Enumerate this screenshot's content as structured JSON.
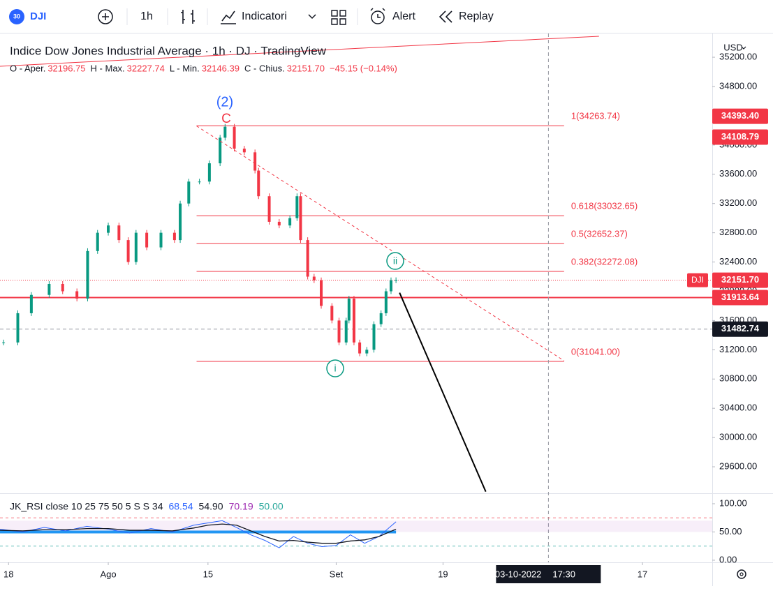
{
  "toolbar": {
    "symbol_badge": "30",
    "symbol": "DJI",
    "interval": "1h",
    "indicators": "Indicatori",
    "alert": "Alert",
    "replay": "Replay"
  },
  "chart_data": {
    "type": "candlestick",
    "title": "Indice Dow Jones Industrial Average · 1h · DJ · TradingView",
    "ohlc": [
      {
        "label": "O - Aper.",
        "value": "32196.75"
      },
      {
        "label": "H - Max.",
        "value": "32227.74"
      },
      {
        "label": "L - Min.",
        "value": "32146.39"
      },
      {
        "label": "C - Chius.",
        "value": "32151.70"
      }
    ],
    "change": "−45.15 (−0.14%)",
    "currency": "USD",
    "x": [
      -0.7,
      1.3,
      3.2,
      5.7,
      7.6,
      9.6,
      11.1,
      12.5,
      14.0,
      15.5,
      16.8,
      17.9,
      19.4,
      21.4,
      23.3,
      24.1,
      25.3,
      26.8,
      28.2,
      29.7,
      30.4,
      31.7,
      33.1,
      34.6,
      35.1,
      36.6,
      38.0,
      39.5,
      40.5,
      41.0,
      42.0,
      42.9,
      43.9,
      45.4,
      46.4,
      47.4,
      47.8,
      48.5,
      49.3,
      50.3,
      51.3,
      52.3,
      53.0,
      53.7,
      54.4
    ],
    "series": [
      {
        "name": "DJI",
        "values": [
          31300,
          31700,
          31950,
          32100,
          32000,
          31900,
          32550,
          32800,
          32900,
          32700,
          32400,
          32800,
          32600,
          32800,
          32700,
          33200,
          33500,
          33500,
          33750,
          34100,
          34250,
          33950,
          33900,
          33650,
          33300,
          32950,
          32900,
          33000,
          33300,
          32700,
          32200,
          32150,
          31800,
          31600,
          31300,
          31600,
          31900,
          31300,
          31150,
          31200,
          31550,
          31700,
          32000,
          32150,
          32151.7
        ]
      }
    ],
    "up_color": "#089981",
    "down_color": "#f23645",
    "xlim": [
      -1.2,
      98.8
    ],
    "xticks": [
      {
        "value": 0,
        "label": "18"
      },
      {
        "value": 14,
        "label": "Ago"
      },
      {
        "value": 28,
        "label": "15"
      },
      {
        "value": 46,
        "label": "Set"
      },
      {
        "value": 61,
        "label": "19"
      },
      {
        "value": 89,
        "label": "17"
      }
    ],
    "ylim": [
      29257,
      35525
    ],
    "yticks": [
      {
        "value": 29600,
        "label": "29600.00"
      },
      {
        "value": 30000,
        "label": "30000.00"
      },
      {
        "value": 30400,
        "label": "30400.00"
      },
      {
        "value": 30800,
        "label": "30800.00"
      },
      {
        "value": 31200,
        "label": "31200.00"
      },
      {
        "value": 31600,
        "label": "31600.00"
      },
      {
        "value": 32000,
        "label": "32000.00"
      },
      {
        "value": 32400,
        "label": "32400.00"
      },
      {
        "value": 32800,
        "label": "32800.00"
      },
      {
        "value": 33200,
        "label": "33200.00"
      },
      {
        "value": 33600,
        "label": "33600.00"
      },
      {
        "value": 34000,
        "label": "34000.00"
      },
      {
        "value": 34400,
        "label": "34400.00"
      },
      {
        "value": 34800,
        "label": "34800.00"
      },
      {
        "value": 35200,
        "label": "35200.00"
      }
    ],
    "fibonacci": [
      {
        "label": "1(34263.74)",
        "value": 34263.74
      },
      {
        "label": "0.618(33032.65)",
        "value": 33032.65
      },
      {
        "label": "0.5(32652.37)",
        "value": 32652.37
      },
      {
        "label": "0.382(32272.08)",
        "value": 32272.08
      },
      {
        "label": "0(31041.00)",
        "value": 31041.0
      }
    ],
    "fib_x": [
      26.4,
      78.0
    ],
    "price_labels": [
      {
        "value": 34393.4,
        "label": "34393.40"
      },
      {
        "value": 34108.79,
        "label": "34108.79"
      }
    ],
    "last_price": {
      "name": "DJI",
      "value": 32151.7,
      "label": "32151.70"
    },
    "resistance": {
      "value": 31913.64,
      "label": "31913.64"
    },
    "crosshair": {
      "x": 75.8,
      "x_label": "03-10-2022",
      "time_label": "17:30",
      "value": 31482.74,
      "label": "31482.74"
    },
    "trendlines": [
      {
        "x": [
          26.4,
          78.0
        ],
        "values": [
          34260,
          31050
        ],
        "color": "#f23645",
        "dashed": true
      },
      {
        "x": [
          54.9,
          67.0
        ],
        "values": [
          31980,
          29260
        ],
        "color": "#000000",
        "dashed": false
      },
      {
        "x": [
          -1.2,
          82.9
        ],
        "values": [
          35077,
          35487
        ],
        "color": "#f23645",
        "dashed": false
      }
    ],
    "annotations": [
      {
        "label": "(2)",
        "color": "#2962ff"
      },
      {
        "label": "C",
        "color": "#f23645"
      },
      {
        "label": "ii",
        "color": "#089981"
      },
      {
        "label": "i",
        "color": "#089981"
      }
    ],
    "rsi": {
      "title": "JK_RSI close 10 25 75 50 5 S S 34",
      "readouts": [
        {
          "label": "68.54",
          "color": "#2962ff"
        },
        {
          "label": "54.90",
          "color": "#131722"
        },
        {
          "label": "70.19",
          "color": "#9c27b0"
        },
        {
          "label": "50.00",
          "color": "#26a69a"
        }
      ],
      "ylim": [
        -2.5,
        117.3
      ],
      "yticks": [
        {
          "value": 0,
          "label": "0.00"
        },
        {
          "value": 50,
          "label": "50.00"
        },
        {
          "value": 100,
          "label": "100.00"
        }
      ],
      "levels": [
        75,
        25
      ],
      "band": [
        50,
        70
      ],
      "signal": 50,
      "x": [
        -1.2,
        2,
        5,
        8,
        11,
        14,
        17,
        20,
        23,
        26,
        28,
        30,
        32,
        34,
        36,
        38,
        40,
        42,
        44,
        46,
        48,
        50,
        52,
        54.4
      ],
      "series": [
        {
          "color": "#2962ff",
          "values": [
            55,
            50,
            58,
            52,
            60,
            55,
            48,
            56,
            50,
            62,
            66,
            70,
            58,
            45,
            35,
            22,
            42,
            30,
            24,
            26,
            45,
            30,
            42,
            68
          ]
        },
        {
          "color": "#131722",
          "values": [
            53,
            52,
            54,
            54,
            56,
            56,
            53,
            53,
            52,
            57,
            62,
            64,
            62,
            52,
            42,
            34,
            35,
            32,
            30,
            30,
            34,
            36,
            42,
            55
          ]
        }
      ]
    }
  }
}
